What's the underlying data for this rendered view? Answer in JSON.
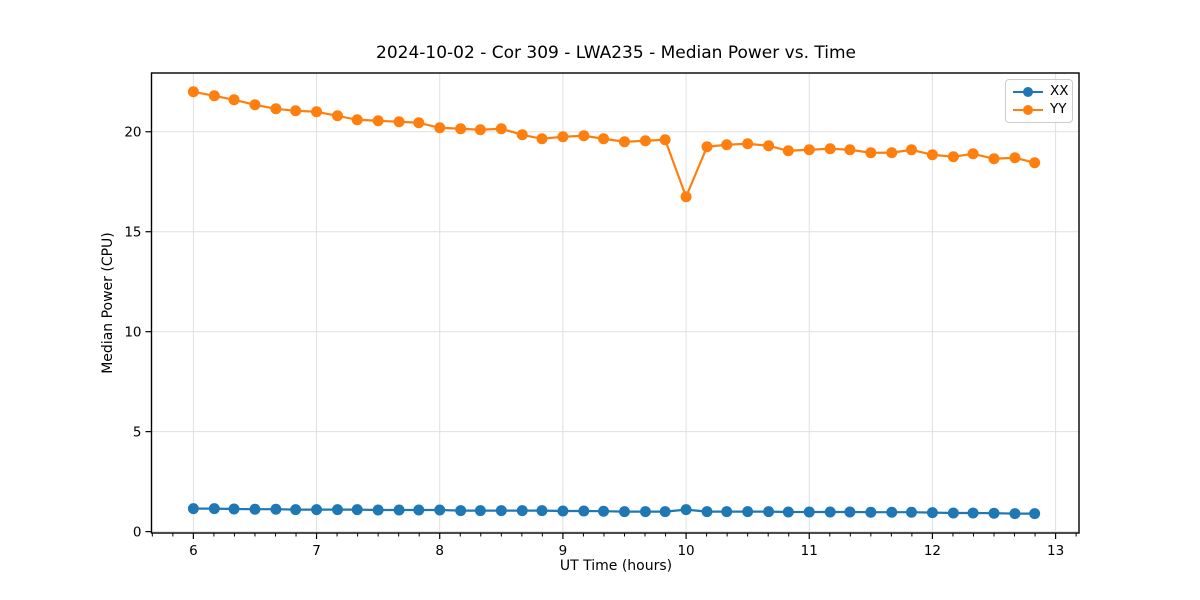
{
  "chart_data": {
    "type": "line",
    "title": "2024-10-02 - Cor 309 - LWA235 - Median Power vs. Time",
    "xlabel": "UT Time (hours)",
    "ylabel": "Median Power (CPU)",
    "xlim": [
      5.66,
      13.19
    ],
    "ylim": [
      -0.07,
      22.94
    ],
    "xticks": [
      6,
      7,
      8,
      9,
      10,
      11,
      12,
      13
    ],
    "yticks": [
      0,
      5,
      10,
      15,
      20
    ],
    "x_minor_step": 0.1667,
    "grid": true,
    "grid_color": "#e0e0e0",
    "legend_position": "upper right",
    "x": [
      6.0,
      6.17,
      6.33,
      6.5,
      6.67,
      6.83,
      7.0,
      7.17,
      7.33,
      7.5,
      7.67,
      7.83,
      8.0,
      8.17,
      8.33,
      8.5,
      8.67,
      8.83,
      9.0,
      9.17,
      9.33,
      9.5,
      9.67,
      9.83,
      10.0,
      10.17,
      10.33,
      10.5,
      10.67,
      10.83,
      11.0,
      11.17,
      11.33,
      11.5,
      11.67,
      11.83,
      12.0,
      12.17,
      12.33,
      12.5,
      12.67,
      12.83
    ],
    "series": [
      {
        "name": "XX",
        "color": "#1f77b4",
        "values": [
          1.15,
          1.15,
          1.13,
          1.12,
          1.12,
          1.1,
          1.1,
          1.1,
          1.1,
          1.08,
          1.08,
          1.08,
          1.08,
          1.05,
          1.05,
          1.05,
          1.05,
          1.05,
          1.03,
          1.03,
          1.02,
          1.0,
          1.0,
          1.0,
          1.1,
          1.0,
          1.0,
          1.0,
          1.0,
          0.98,
          0.98,
          0.98,
          0.98,
          0.97,
          0.97,
          0.97,
          0.95,
          0.93,
          0.93,
          0.92,
          0.9,
          0.9
        ]
      },
      {
        "name": "YY",
        "color": "#ff7f0e",
        "values": [
          22.0,
          21.8,
          21.6,
          21.35,
          21.15,
          21.05,
          21.0,
          20.8,
          20.6,
          20.55,
          20.5,
          20.45,
          20.2,
          20.15,
          20.1,
          20.15,
          19.85,
          19.65,
          19.75,
          19.8,
          19.65,
          19.5,
          19.55,
          19.6,
          16.75,
          19.25,
          19.35,
          19.4,
          19.3,
          19.05,
          19.1,
          19.15,
          19.1,
          18.95,
          18.95,
          19.1,
          18.85,
          18.75,
          18.9,
          18.65,
          18.7,
          18.45
        ]
      }
    ]
  }
}
